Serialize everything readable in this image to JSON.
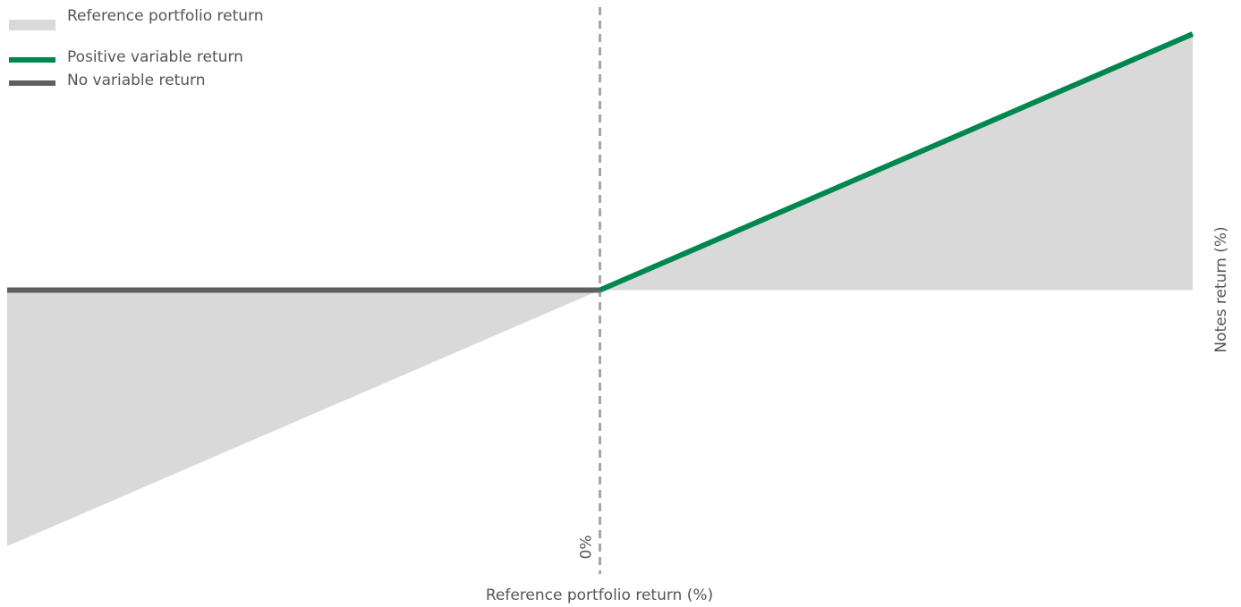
{
  "chart_data": {
    "type": "line",
    "title": "",
    "xlabel": "Reference portfolio return (%)",
    "ylabel": "Notes return (%)",
    "x_marker_label": "0%",
    "legend_position": "top-left",
    "series": [
      {
        "name": "Reference portfolio return",
        "kind": "area",
        "color": "#d9d9d9",
        "x": [
          -1,
          0,
          1
        ],
        "y": [
          -1,
          0,
          1
        ]
      },
      {
        "name": "Positive variable return",
        "kind": "line",
        "color": "#00874e",
        "x": [
          0,
          1
        ],
        "y": [
          0,
          1
        ]
      },
      {
        "name": "No variable return",
        "kind": "line",
        "color": "#5f5f5f",
        "x": [
          -1,
          0
        ],
        "y": [
          0,
          0
        ]
      }
    ],
    "xlim": [
      -1,
      1
    ],
    "ylim": [
      -1,
      1
    ],
    "vertical_reference_line": {
      "x": 0,
      "style": "dashed",
      "color": "#a6a6a6"
    }
  }
}
